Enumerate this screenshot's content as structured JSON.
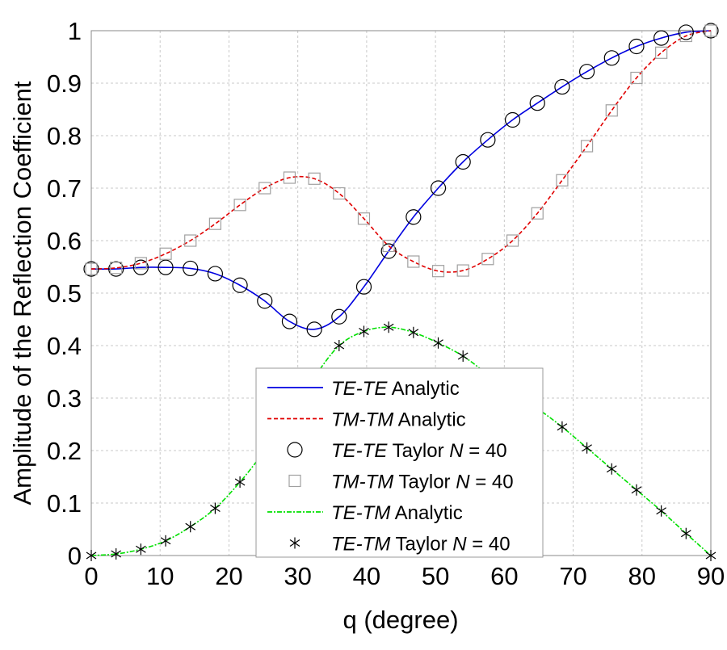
{
  "chart_data": {
    "type": "line",
    "title": "",
    "xlabel": "q (degree)",
    "ylabel": "Amplitude of the Reflection Coefficient",
    "xlim": [
      0,
      90
    ],
    "ylim": [
      0,
      1
    ],
    "xticks": [
      "0",
      "10",
      "20",
      "30",
      "40",
      "50",
      "60",
      "70",
      "80",
      "90"
    ],
    "yticks": [
      "0",
      "0.1",
      "0.2",
      "0.3",
      "0.4",
      "0.5",
      "0.6",
      "0.7",
      "0.8",
      "0.9",
      "1"
    ],
    "grid": true,
    "legend_placement": "bottom-center",
    "x": [
      0,
      3.6,
      7.2,
      10.8,
      14.4,
      18,
      21.6,
      25.2,
      28.8,
      32.4,
      36,
      39.6,
      43.2,
      46.8,
      50.4,
      54,
      57.6,
      61.2,
      64.8,
      68.4,
      72,
      75.6,
      79.2,
      82.8,
      86.4,
      90
    ],
    "series": [
      {
        "name_pre": "TE-TE",
        "name_post": "Analytic",
        "style": "solid",
        "color": "#0000e0",
        "ref": "tete"
      },
      {
        "name_pre": "TM-TM",
        "name_post": "Analytic",
        "style": "dashed",
        "color": "#e00000",
        "ref": "tmtm"
      },
      {
        "name_pre": "TE-TE",
        "name_post": "Taylor",
        "N": "N",
        "eq": " = 40",
        "marker": "circle",
        "color": "#000000",
        "ref": "tete"
      },
      {
        "name_pre": "TM-TM",
        "name_post": "Taylor",
        "N": "N",
        "eq": " = 40",
        "marker": "square",
        "color": "#a0a0a0",
        "ref": "tmtm"
      },
      {
        "name_pre": "TE-TM",
        "name_post": "Analytic",
        "style": "dashdot",
        "color": "#00e000",
        "ref": "tetm"
      },
      {
        "name_pre": "TE-TM",
        "name_post": "Taylor",
        "N": "N",
        "eq": " = 40",
        "marker": "star",
        "color": "#000000",
        "ref": "tetm"
      }
    ],
    "values": {
      "tete": [
        0.546,
        0.546,
        0.549,
        0.549,
        0.547,
        0.537,
        0.515,
        0.485,
        0.446,
        0.431,
        0.455,
        0.512,
        0.58,
        0.645,
        0.7,
        0.75,
        0.792,
        0.83,
        0.862,
        0.893,
        0.922,
        0.948,
        0.97,
        0.986,
        0.997,
        1.0
      ],
      "tmtm": [
        0.546,
        0.548,
        0.557,
        0.575,
        0.6,
        0.632,
        0.668,
        0.7,
        0.72,
        0.718,
        0.69,
        0.642,
        0.59,
        0.56,
        0.542,
        0.543,
        0.565,
        0.6,
        0.652,
        0.715,
        0.78,
        0.848,
        0.91,
        0.958,
        0.99,
        1.0
      ],
      "tetm": [
        0,
        0.003,
        0.012,
        0.028,
        0.055,
        0.09,
        0.14,
        0.2,
        0.27,
        0.34,
        0.4,
        0.427,
        0.435,
        0.425,
        0.405,
        0.38,
        0.345,
        0.31,
        0.28,
        0.245,
        0.205,
        0.165,
        0.125,
        0.085,
        0.042,
        0
      ]
    }
  }
}
